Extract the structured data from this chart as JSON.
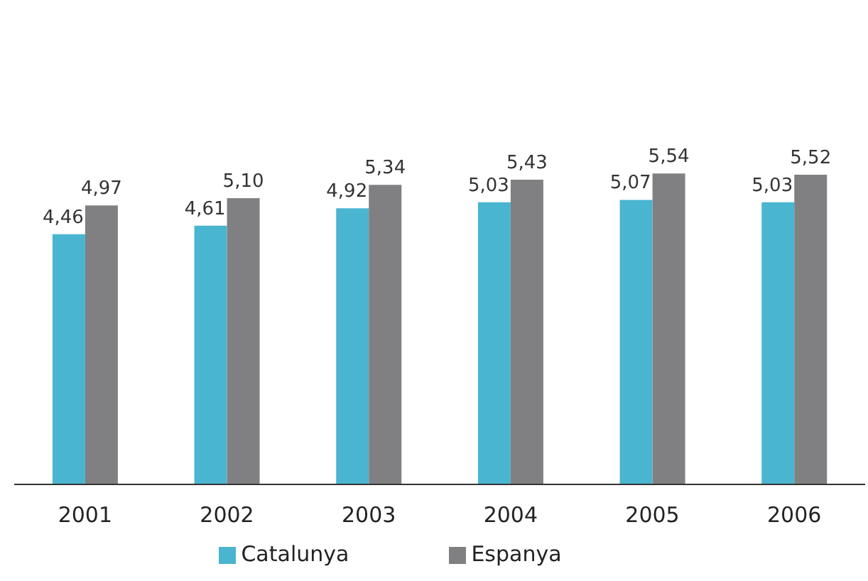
{
  "chart_data": {
    "type": "bar",
    "categories": [
      "2001",
      "2002",
      "2003",
      "2004",
      "2005",
      "2006"
    ],
    "series": [
      {
        "name": "Catalunya",
        "color": "#4ab5d0",
        "values": [
          4.46,
          4.61,
          4.92,
          5.03,
          5.07,
          5.03
        ],
        "value_labels": [
          "4,46",
          "4,61",
          "4,92",
          "5,03",
          "5,07",
          "5,03"
        ]
      },
      {
        "name": "Espanya",
        "color": "#808083",
        "values": [
          4.97,
          5.1,
          5.34,
          5.43,
          5.54,
          5.52
        ],
        "value_labels": [
          "4,97",
          "5,10",
          "5,34",
          "5,43",
          "5,54",
          "5,52"
        ]
      }
    ],
    "tick_labels": "x",
    "grid": false,
    "legend": "bottom"
  }
}
